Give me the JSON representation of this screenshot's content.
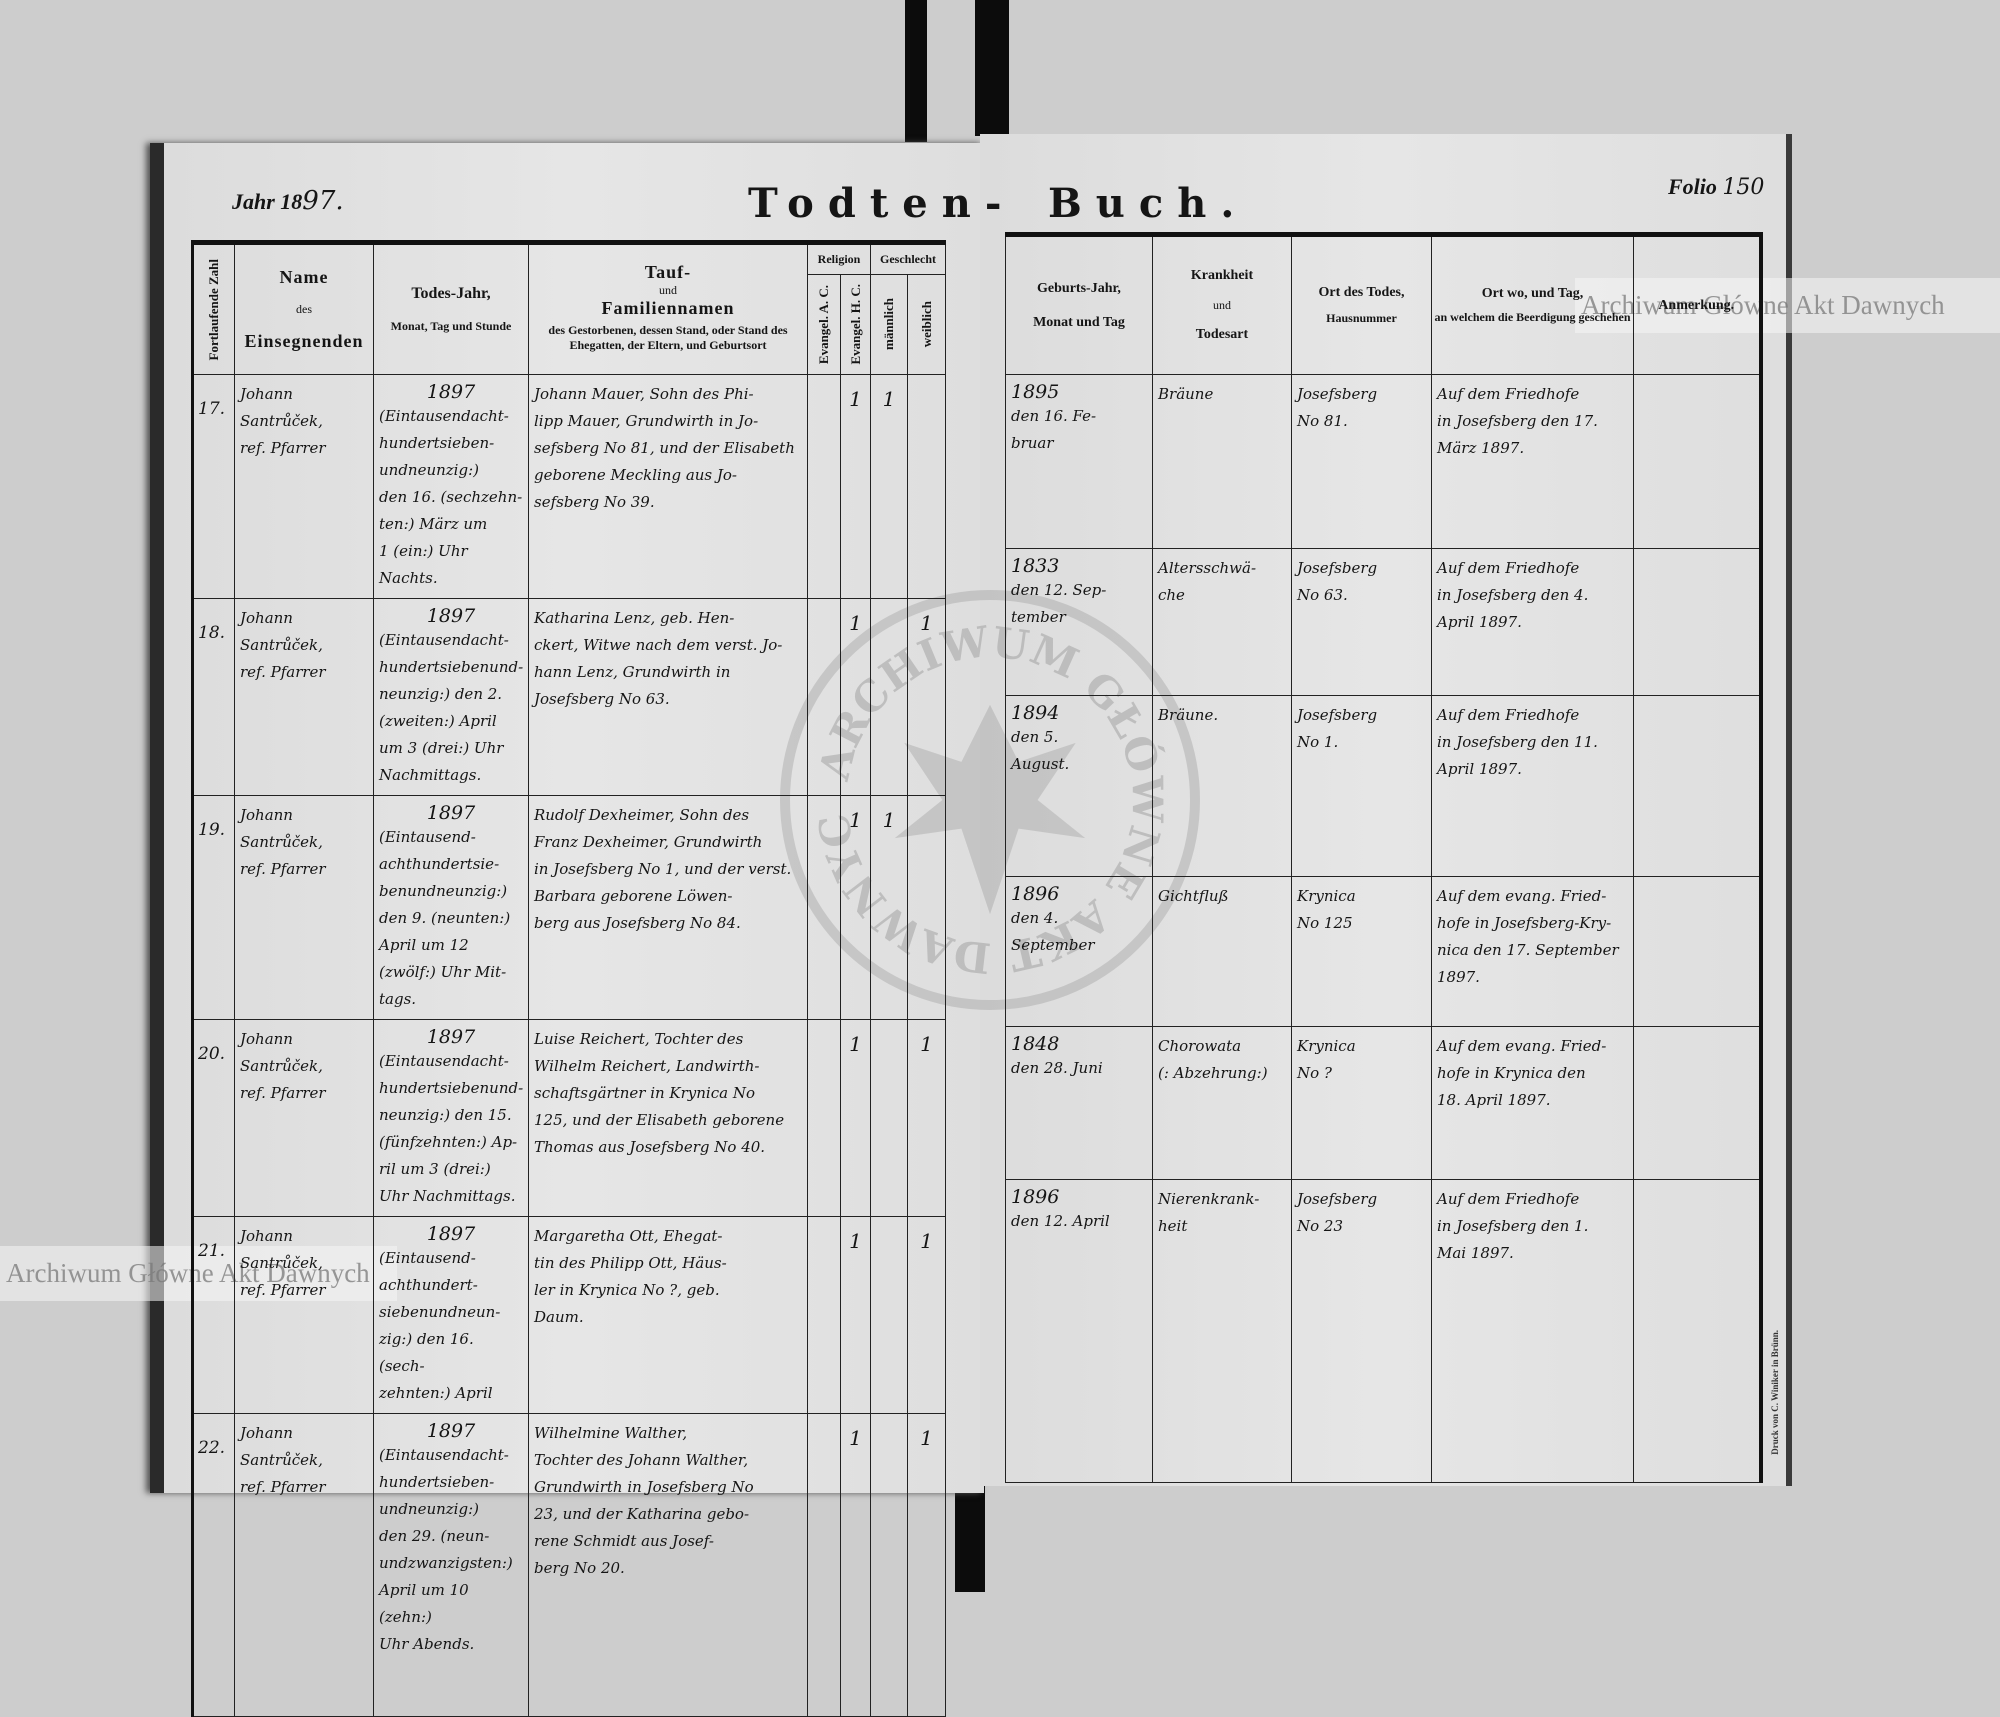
{
  "left_page": {
    "year_label": "Jahr 18",
    "year_hand": "97.",
    "title": "Todten-"
  },
  "right_page": {
    "title": "Buch.",
    "folio_label": "Folio",
    "folio_hand": "150"
  },
  "columns_left": {
    "number": "Fortlaufende Zahl",
    "officiant_1": "Name",
    "officiant_2": "des",
    "officiant_3": "Einsegnenden",
    "death_1": "Todes-Jahr,",
    "death_2": "Monat, Tag und Stunde",
    "name_1": "Tauf-",
    "name_2": "und",
    "name_3": "Familiennamen",
    "name_4": "des Gestorbenen, dessen Stand, oder Stand des Ehegatten, der Eltern, und Geburtsort",
    "religion": "Religion",
    "religion_ac": "Evangel. A. C.",
    "religion_hc": "Evangel. H. C.",
    "sex": "Geschlecht",
    "male": "männlich",
    "female": "weiblich"
  },
  "columns_right": {
    "birth_1": "Geburts-Jahr,",
    "birth_2": "Monat und Tag",
    "illness_1": "Krankheit",
    "illness_2": "und",
    "illness_3": "Todesart",
    "place_1": "Ort des Todes,",
    "place_2": "Hausnummer",
    "burial_1": "Ort wo, und Tag,",
    "burial_2": "an welchem die Beerdigung geschehen",
    "remark": "Anmerkung."
  },
  "entries": [
    {
      "number": "17.",
      "officiant": "Johann\nSantrůček,\nref. Pfarrer",
      "death_year": "1897",
      "death": "(Eintausendacht-\nhundertsieben-\nundneunzig:)\nden 16. (sechzehn-\nten:) März um\n1 (ein:) Uhr Nachts.",
      "name": "Johann Mauer, Sohn des Phi-\nlipp Mauer, Grundwirth in Jo-\nsefsberg No 81, und der Elisabeth\ngeborene Meckling aus Jo-\nsefsberg No 39.",
      "ac": "",
      "hc": "1",
      "male": "1",
      "female": "",
      "birth_year": "1895",
      "birth": "den 16. Fe-\nbruar",
      "illness": "Bräune",
      "place": "Josefsberg\nNo 81.",
      "burial": "Auf dem Friedhofe\nin Josefsberg den 17.\nMärz 1897.",
      "remark": ""
    },
    {
      "number": "18.",
      "officiant": "Johann\nSantrůček,\nref. Pfarrer",
      "death_year": "1897",
      "death": "(Eintausendacht-\nhundertsiebenund-\nneunzig:) den 2.\n(zweiten:) April\num 3 (drei:) Uhr\nNachmittags.",
      "name": "Katharina Lenz, geb. Hen-\nckert, Witwe nach dem verst. Jo-\nhann Lenz, Grundwirth in\nJosefsberg No 63.",
      "ac": "",
      "hc": "1",
      "male": "",
      "female": "1",
      "birth_year": "1833",
      "birth": "den 12. Sep-\ntember",
      "illness": "Altersschwä-\nche",
      "place": "Josefsberg\nNo 63.",
      "burial": "Auf dem Friedhofe\nin Josefsberg den 4.\nApril 1897.",
      "remark": ""
    },
    {
      "number": "19.",
      "officiant": "Johann\nSantrůček,\nref. Pfarrer",
      "death_year": "1897",
      "death": "(Eintausend-\nachthundertsie-\nbenundneunzig:)\nden 9. (neunten:)\nApril um 12\n(zwölf:) Uhr Mit-\ntags.",
      "name": "Rudolf Dexheimer, Sohn des\nFranz Dexheimer, Grundwirth\nin Josefsberg No 1, und der verst.\nBarbara geborene Löwen-\nberg aus Josefsberg No 84.",
      "ac": "",
      "hc": "1",
      "male": "1",
      "female": "",
      "birth_year": "1894",
      "birth": "den 5.\nAugust.",
      "illness": "Bräune.",
      "place": "Josefsberg\nNo 1.",
      "burial": "Auf dem Friedhofe\nin Josefsberg den 11.\nApril 1897.",
      "remark": ""
    },
    {
      "number": "20.",
      "officiant": "Johann\nSantrůček,\nref. Pfarrer",
      "death_year": "1897",
      "death": "(Eintausendacht-\nhundertsiebenund-\nneunzig:) den 15.\n(fünfzehnten:) Ap-\nril um 3 (drei:)\nUhr Nachmittags.",
      "name": "Luise Reichert, Tochter des\nWilhelm Reichert, Landwirth-\nschaftsgärtner in Krynica No\n125, und der Elisabeth geborene\nThomas aus Josefsberg No 40.",
      "ac": "",
      "hc": "1",
      "male": "",
      "female": "1",
      "birth_year": "1896",
      "birth": "den 4.\nSeptember",
      "illness": "Gichtfluß",
      "place": "Krynica\nNo 125",
      "burial": "Auf dem evang. Fried-\nhofe in Josefsberg-Kry-\nnica den 17. September\n1897.",
      "remark": ""
    },
    {
      "number": "21.",
      "officiant": "Johann\nSantrůček,\nref. Pfarrer",
      "death_year": "1897",
      "death": "(Eintausend-\nachthundert-\nsiebenundneun-\nzig:) den 16. (sech-\nzehnten:) April",
      "name": "Margaretha Ott, Ehegat-\ntin des Philipp Ott, Häus-\nler in Krynica No ?, geb.\nDaum.",
      "ac": "",
      "hc": "1",
      "male": "",
      "female": "1",
      "birth_year": "1848",
      "birth": "den 28. Juni",
      "illness": "Chorowata\n(: Abzehrung:)",
      "place": "Krynica\nNo ?",
      "burial": "Auf dem evang. Fried-\nhofe in Krynica den\n18. April 1897.",
      "remark": ""
    },
    {
      "number": "22.",
      "officiant": "Johann\nSantrůček,\nref. Pfarrer",
      "death_year": "1897",
      "death": "(Eintausendacht-\nhundertsieben-\nundneunzig:)\nden 29. (neun-\nundzwanzigsten:)\nApril um 10 (zehn:)\nUhr Abends.",
      "name": "Wilhelmine Walther,\nTochter des Johann Walther,\nGrundwirth in Josefsberg No\n23, und der Katharina gebo-\nrene Schmidt aus Josef-\nberg No 20.",
      "ac": "",
      "hc": "1",
      "male": "",
      "female": "1",
      "birth_year": "1896",
      "birth": "den 12. April",
      "illness": "Nierenkrank-\nheit",
      "place": "Josefsberg\nNo 23",
      "burial": "Auf dem Friedhofe\nin Josefsberg den 1.\nMai 1897.",
      "remark": ""
    }
  ],
  "watermark": {
    "text": "Archiwum Główne Akt Dawnych",
    "seal_text": "ARCHIWUM GŁÓWNE AKT DAWNYCH"
  },
  "printer": "Druck von C. Winiker in Brünn.",
  "colors": {
    "paper": "#e2e2e2",
    "ink": "#151515",
    "background": "#cdcdcd"
  }
}
